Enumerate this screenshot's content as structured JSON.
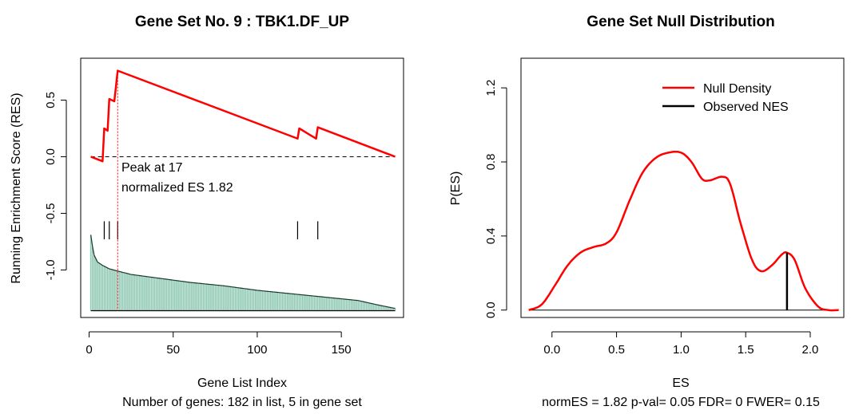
{
  "colors": {
    "running_es": "#ff0000",
    "null_density": "#ff0000",
    "observed": "#000000",
    "bars_fill": "#8fc9b4",
    "bars_edge": "#1a3a2a",
    "peak_line": "#ff0000",
    "axis": "#000000"
  },
  "chart_data": [
    {
      "type": "line",
      "title": "Gene Set No. 9 : TBK1.DF_UP",
      "xlabel": "Gene List Index",
      "subtitle": "Number of genes: 182 in list, 5 in gene set",
      "ylabel": "Running Enrichment Score (RES)",
      "xlim": [
        -5,
        187
      ],
      "ylim": [
        -1.42,
        0.87
      ],
      "xticks": [
        0,
        50,
        100,
        150
      ],
      "yticks": [
        -1.0,
        -0.5,
        0.0,
        0.5
      ],
      "ytick_labels": [
        "-1.0",
        "-0.5",
        "0.0",
        "0.5"
      ],
      "series": [
        {
          "values": [
            [
              1,
              0.0
            ],
            [
              8,
              -0.04
            ],
            [
              9,
              0.25
            ],
            [
              11,
              0.23
            ],
            [
              12,
              0.51
            ],
            [
              15,
              0.49
            ],
            [
              17,
              0.76
            ],
            [
              124,
              0.16
            ],
            [
              125,
              0.25
            ],
            [
              135,
              0.16
            ],
            [
              136,
              0.26
            ],
            [
              182,
              0.0
            ]
          ]
        }
      ],
      "zero_line": 0.0,
      "hits": [
        9,
        12,
        17,
        124,
        136
      ],
      "hit_range": [
        -0.57,
        -0.73
      ],
      "peak_index": 17,
      "annotation": [
        "Peak at 17",
        "normalized ES 1.82"
      ],
      "ranked_metric_bars": {
        "baseline": -1.36,
        "profile": [
          [
            1,
            -0.69
          ],
          [
            2,
            -0.79
          ],
          [
            3,
            -0.87
          ],
          [
            5,
            -0.93
          ],
          [
            8,
            -0.96
          ],
          [
            12,
            -0.99
          ],
          [
            17,
            -1.01
          ],
          [
            25,
            -1.04
          ],
          [
            40,
            -1.07
          ],
          [
            60,
            -1.11
          ],
          [
            80,
            -1.14
          ],
          [
            100,
            -1.18
          ],
          [
            120,
            -1.21
          ],
          [
            140,
            -1.24
          ],
          [
            160,
            -1.27
          ],
          [
            172,
            -1.31
          ],
          [
            182,
            -1.34
          ]
        ]
      }
    },
    {
      "type": "line",
      "title": "Gene Set Null Distribution",
      "xlabel": "ES",
      "subtitle": "normES = 1.82 p-val= 0.05 FDR= 0 FWER= 0.15",
      "ylabel": "P(ES)",
      "xlim": [
        -0.24,
        2.26
      ],
      "ylim": [
        -0.04,
        1.36
      ],
      "xticks": [
        0.0,
        0.5,
        1.0,
        1.5,
        2.0
      ],
      "yticks": [
        0.0,
        0.4,
        0.8,
        1.2
      ],
      "ytick_labels": [
        "0.0",
        "0.4",
        "0.8",
        "1.2"
      ],
      "legend": {
        "position": "top-right",
        "entries": [
          {
            "label": "Null Density",
            "color": "#ff0000"
          },
          {
            "label": "Observed NES",
            "color": "#000000"
          }
        ]
      },
      "series": [
        {
          "name": "Null Density",
          "values": [
            [
              -0.18,
              0.0
            ],
            [
              -0.08,
              0.03
            ],
            [
              0.02,
              0.13
            ],
            [
              0.12,
              0.24
            ],
            [
              0.22,
              0.31
            ],
            [
              0.32,
              0.34
            ],
            [
              0.42,
              0.36
            ],
            [
              0.5,
              0.42
            ],
            [
              0.6,
              0.59
            ],
            [
              0.7,
              0.74
            ],
            [
              0.8,
              0.82
            ],
            [
              0.9,
              0.85
            ],
            [
              1.0,
              0.85
            ],
            [
              1.08,
              0.8
            ],
            [
              1.16,
              0.71
            ],
            [
              1.22,
              0.7
            ],
            [
              1.32,
              0.72
            ],
            [
              1.38,
              0.68
            ],
            [
              1.46,
              0.47
            ],
            [
              1.55,
              0.27
            ],
            [
              1.62,
              0.21
            ],
            [
              1.7,
              0.24
            ],
            [
              1.78,
              0.3
            ],
            [
              1.82,
              0.31
            ],
            [
              1.88,
              0.27
            ],
            [
              1.96,
              0.12
            ],
            [
              2.06,
              0.02
            ],
            [
              2.14,
              0.0
            ],
            [
              2.22,
              0.0
            ]
          ]
        }
      ],
      "baseline": 0.0,
      "observed_nes": 1.82,
      "observed_height": 0.31
    }
  ]
}
